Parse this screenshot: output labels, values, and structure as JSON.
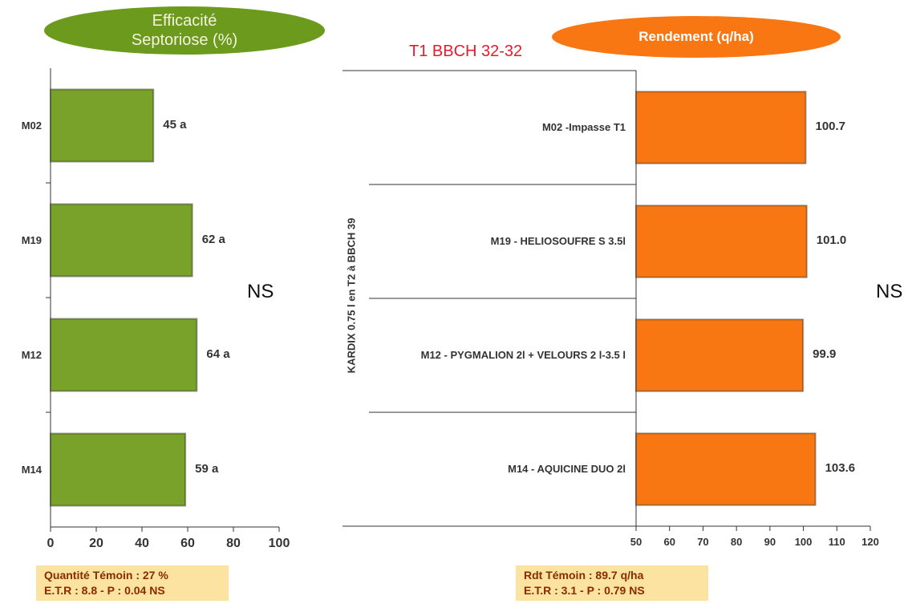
{
  "chart_data": [
    {
      "type": "bar",
      "orientation": "horizontal",
      "title": "Efficacité Septoriose (%)",
      "categories": [
        "M02",
        "M19",
        "M12",
        "M14"
      ],
      "values": [
        45,
        62,
        64,
        59
      ],
      "value_labels": [
        "45 a",
        "62 a",
        "64 a",
        "59 a"
      ],
      "color": "#78a22a",
      "title_color": "#6b9a1c",
      "xlim": [
        0,
        100
      ],
      "xticks": [
        0,
        20,
        40,
        60,
        80,
        100
      ],
      "annotation": "NS",
      "notes": [
        "Quantité Témoin : 27 %",
        "E.T.R : 8.8 - P : 0.04 NS"
      ]
    },
    {
      "type": "bar",
      "orientation": "horizontal",
      "title": "Rendement (q/ha)",
      "subtitle": "T1 BBCH 32-32",
      "y_label": "KARDIX 0.75 l en T2 à BBCH 39",
      "categories": [
        "M02 -Impasse T1",
        "M19 - HELIOSOUFRE S 3.5l",
        "M12 - PYGMALION 2l + VELOURS 2 l-3.5 l",
        "M14 - AQUICINE DUO 2l"
      ],
      "values": [
        100.7,
        101.0,
        99.9,
        103.6
      ],
      "value_labels": [
        "100.7",
        "101.0",
        "99.9",
        "103.6"
      ],
      "color": "#f97712",
      "title_color": "#f97712",
      "xlim": [
        50,
        120
      ],
      "xticks": [
        50,
        60,
        70,
        80,
        90,
        100,
        110,
        120
      ],
      "annotation": "NS",
      "notes": [
        "Rdt Témoin : 89.7 q/ha",
        "E.T.R : 3.1 - P : 0.79 NS"
      ]
    }
  ]
}
